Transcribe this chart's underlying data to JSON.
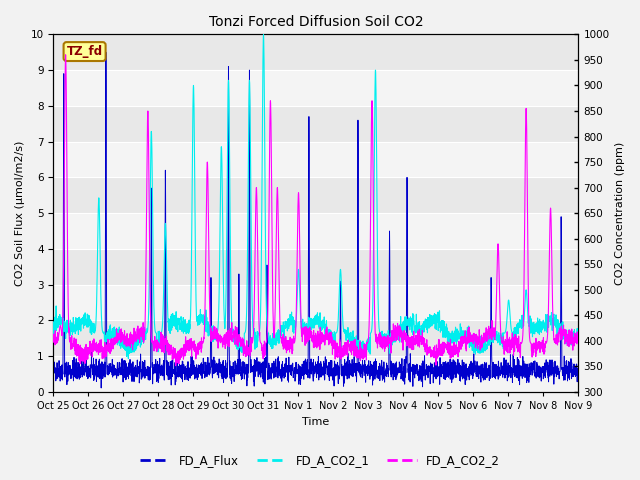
{
  "title": "Tonzi Forced Diffusion Soil CO2",
  "xlabel": "Time",
  "ylabel_left": "CO2 Soil Flux (μmol/m2/s)",
  "ylabel_right": "CO2 Concentration (ppm)",
  "ylim_left": [
    0.0,
    10.0
  ],
  "ylim_right": [
    300,
    1000
  ],
  "yticks_left": [
    0.0,
    1.0,
    2.0,
    3.0,
    4.0,
    5.0,
    6.0,
    7.0,
    8.0,
    9.0,
    10.0
  ],
  "yticks_right": [
    300,
    350,
    400,
    450,
    500,
    550,
    600,
    650,
    700,
    750,
    800,
    850,
    900,
    950,
    1000
  ],
  "xtick_labels": [
    "Oct 25",
    "Oct 26",
    "Oct 27",
    "Oct 28",
    "Oct 29",
    "Oct 30",
    "Oct 31",
    "Nov 1",
    "Nov 2",
    "Nov 3",
    "Nov 4",
    "Nov 5",
    "Nov 6",
    "Nov 7",
    "Nov 8",
    "Nov 9"
  ],
  "legend_label": "TZ_fd",
  "series_labels": [
    "FD_A_Flux",
    "FD_A_CO2_1",
    "FD_A_CO2_2"
  ],
  "flux_color": "#0000CC",
  "co2_1_color": "#00EEEE",
  "co2_2_color": "#FF00FF",
  "plot_bg_color": "#E8E8E8",
  "fig_bg_color": "#F2F2F2",
  "grid_color": "#FFFFFF",
  "n_points": 2880,
  "seed": 42
}
